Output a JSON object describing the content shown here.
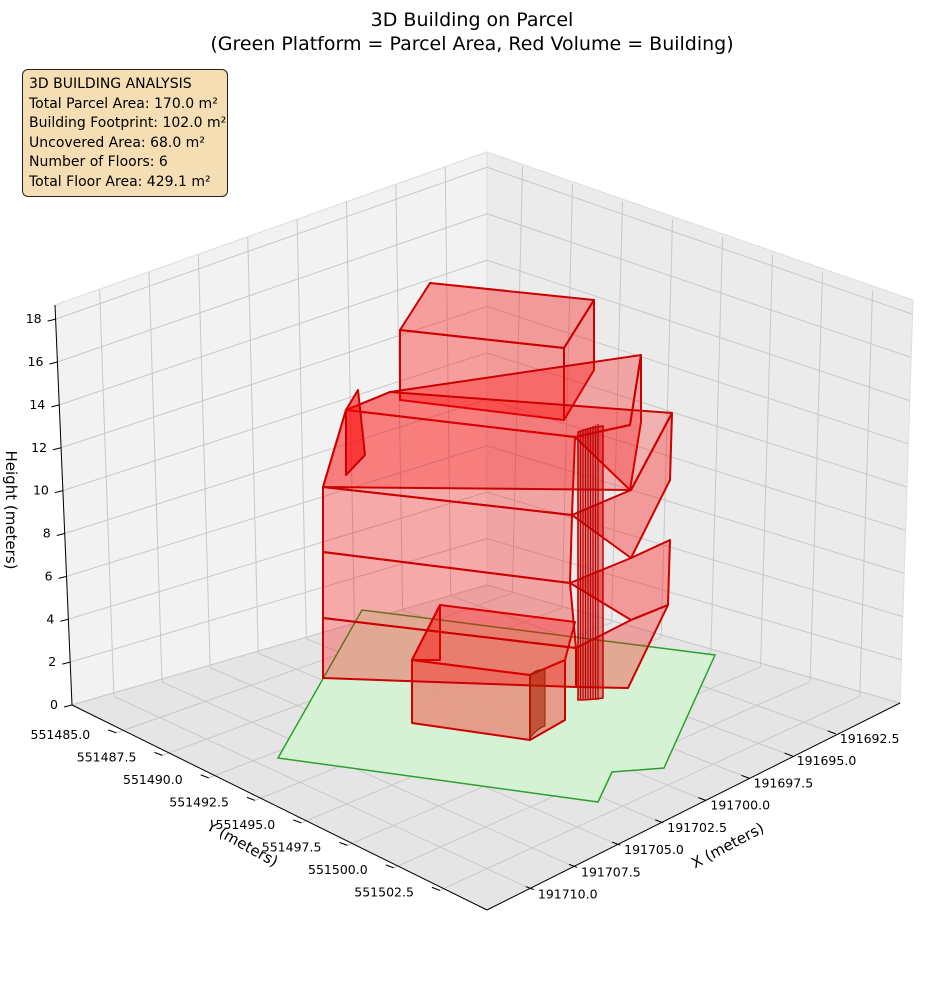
{
  "chart_data": {
    "type": "3d-volume",
    "title_line1": "3D Building on Parcel",
    "title_line2": "(Green Platform = Parcel Area, Red Volume = Building)",
    "xlabel": "X (meters)",
    "ylabel": "Y (meters)",
    "zlabel": "Height (meters)",
    "x_ticks": [
      "191692.5",
      "191695.0",
      "191697.5",
      "191700.0",
      "191702.5",
      "191705.0",
      "191707.5",
      "191710.0"
    ],
    "y_ticks": [
      "551485.0",
      "551487.5",
      "551490.0",
      "551492.5",
      "551495.0",
      "551497.5",
      "551500.0",
      "551502.5"
    ],
    "z_ticks": [
      "0",
      "2",
      "4",
      "6",
      "8",
      "10",
      "12",
      "14",
      "16",
      "18"
    ],
    "zlim": [
      0,
      18
    ],
    "grid": true,
    "colors": {
      "parcel_fill": "#d4f2d4",
      "parcel_edge": "#2ca02c",
      "building_fill": "#ff0000",
      "building_edge": "#cc0000"
    },
    "analysis": {
      "heading": "3D BUILDING ANALYSIS",
      "parcel_area": "Total Parcel Area: 170.0 m²",
      "footprint": "Building Footprint: 102.0 m²",
      "uncovered": "Uncovered Area: 68.0 m²",
      "floors": "Number of Floors: 6",
      "floor_area": "Total Floor Area: 429.1 m²"
    }
  }
}
